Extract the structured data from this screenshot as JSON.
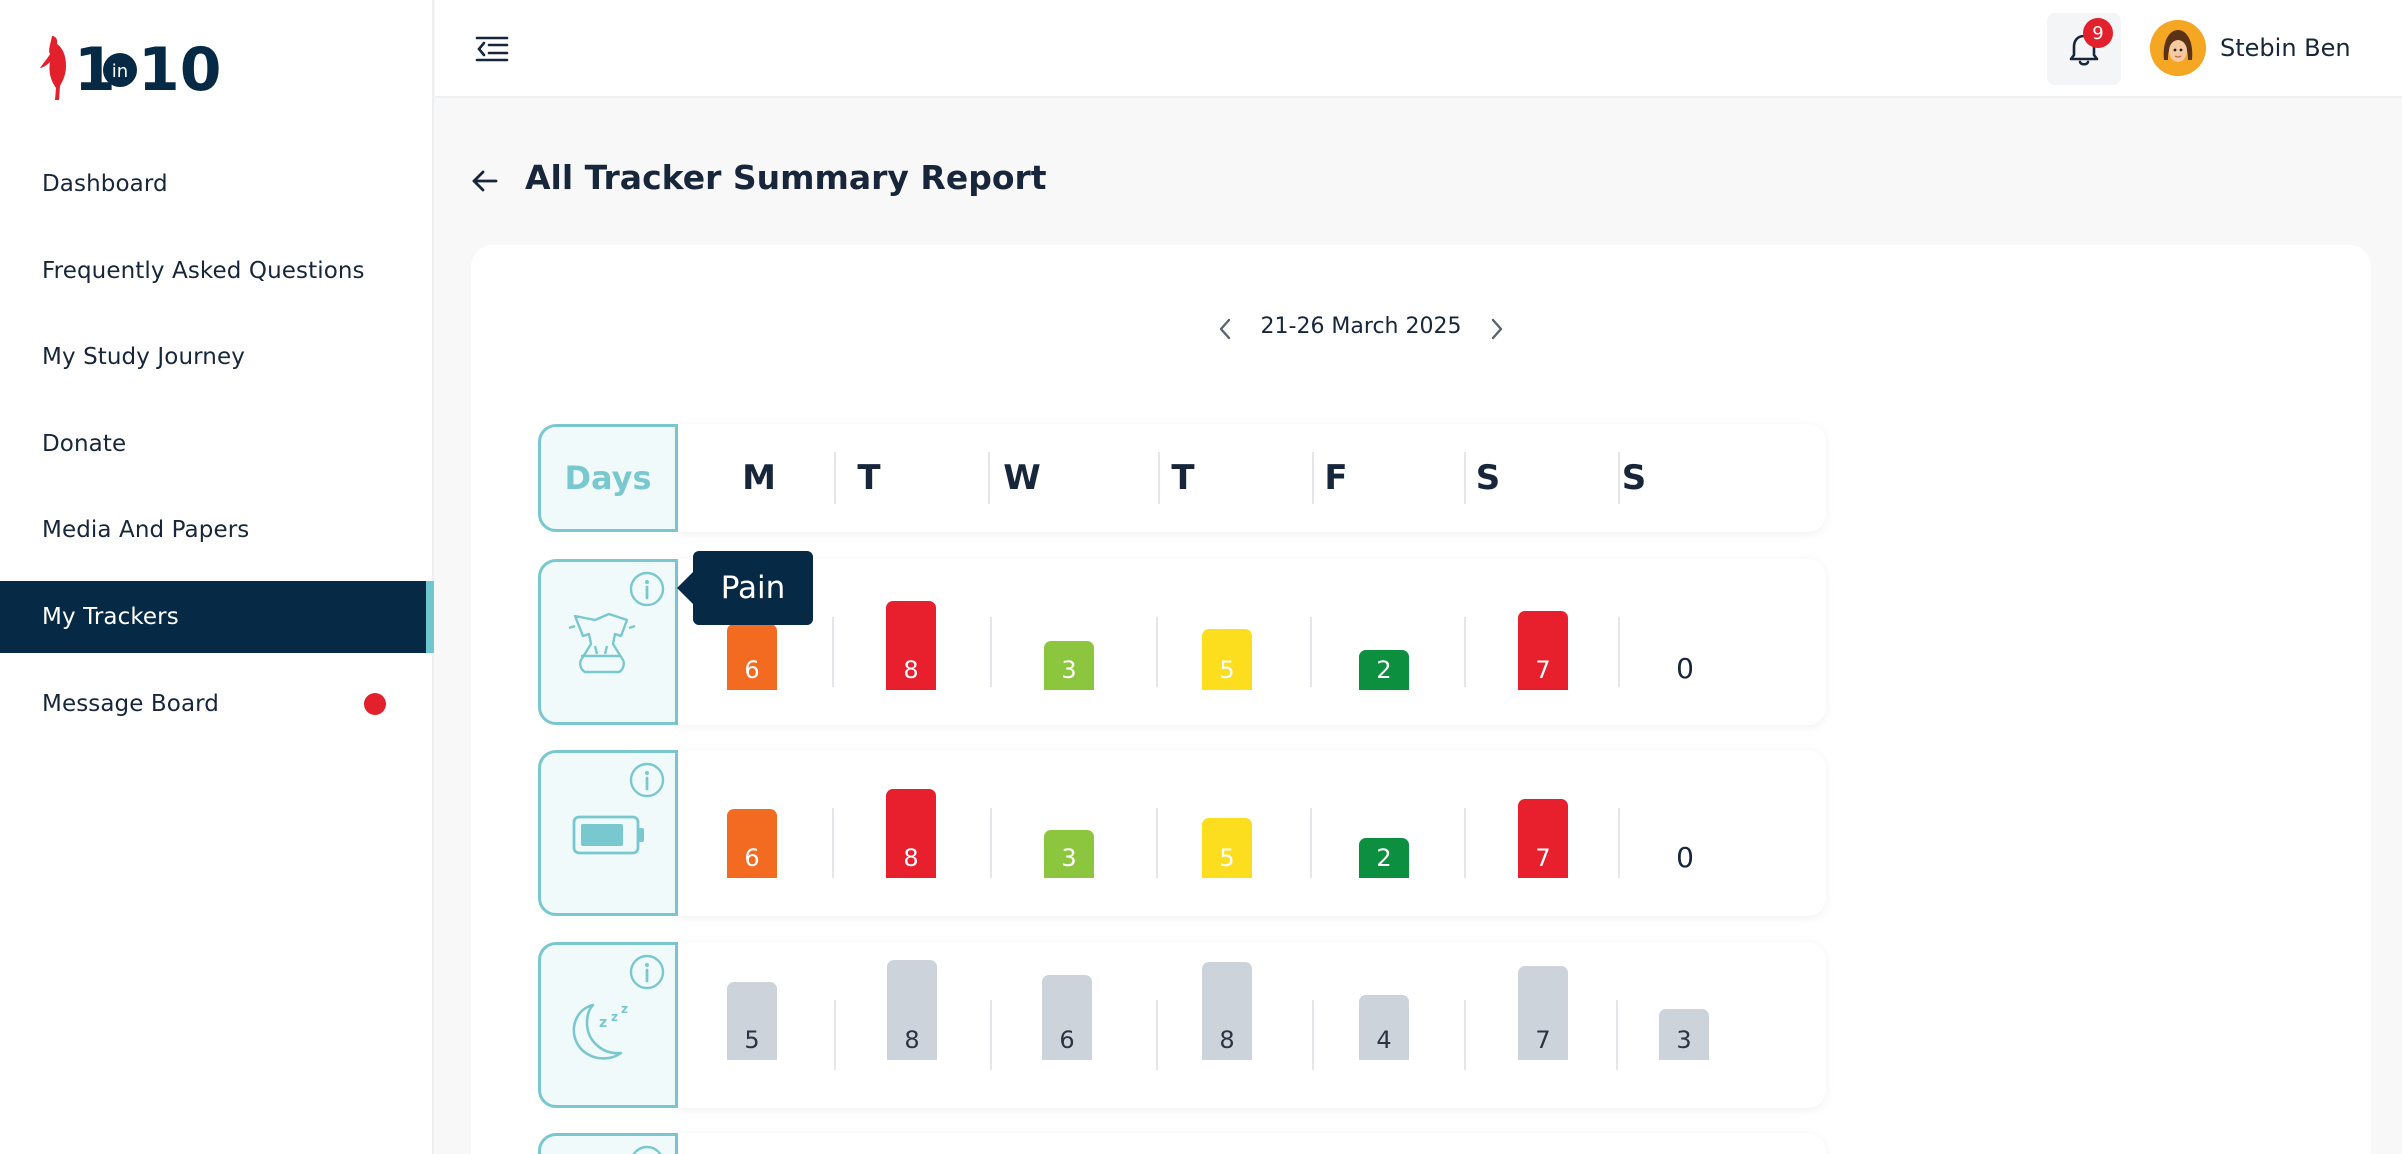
{
  "brand": {
    "logo_alt": "1 in 10",
    "logo_text_1": "1",
    "logo_text_in": "in",
    "logo_text_10": "10"
  },
  "sidebar": {
    "items": [
      {
        "label": "Dashboard",
        "active": false
      },
      {
        "label": "Frequently Asked Questions",
        "active": false
      },
      {
        "label": "My Study Journey",
        "active": false
      },
      {
        "label": "Donate",
        "active": false
      },
      {
        "label": "Media And Papers",
        "active": false
      },
      {
        "label": "My Trackers",
        "active": true
      },
      {
        "label": "Message Board",
        "active": false,
        "has_unread_dot": true
      }
    ]
  },
  "topbar": {
    "notifications_count": "9",
    "user_name": "Stebin Ben"
  },
  "page": {
    "title": "All Tracker Summary Report",
    "week_range": "21-26 March 2025"
  },
  "days_header": {
    "label": "Days",
    "letters": [
      "M",
      "T",
      "W",
      "T",
      "F",
      "S",
      "S"
    ]
  },
  "tooltip": {
    "text": "Pain"
  },
  "trackers": [
    {
      "name": "pain",
      "icon": "pain-body-icon",
      "values": [
        "6",
        "8",
        "3",
        "5",
        "2",
        "7",
        "0"
      ],
      "colors": [
        "#f26b21",
        "#e8202d",
        "#8cc63f",
        "#fcde1e",
        "#0c8f3f",
        "#e8202d",
        null
      ]
    },
    {
      "name": "energy",
      "icon": "battery-icon",
      "values": [
        "6",
        "8",
        "3",
        "5",
        "2",
        "7",
        "0"
      ],
      "colors": [
        "#f26b21",
        "#e8202d",
        "#8cc63f",
        "#fcde1e",
        "#0c8f3f",
        "#e8202d",
        null
      ]
    },
    {
      "name": "sleep",
      "icon": "moon-sleep-icon",
      "values": [
        "5",
        "8",
        "6",
        "8",
        "4",
        "7",
        "3"
      ],
      "colors": [
        "#cdd3da",
        "#cdd3da",
        "#cdd3da",
        "#cdd3da",
        "#cdd3da",
        "#cdd3da",
        "#cdd3da"
      ]
    }
  ],
  "colors": {
    "navy": "#062a45",
    "teal": "#7ac8cf",
    "badge_red": "#e3212d"
  }
}
